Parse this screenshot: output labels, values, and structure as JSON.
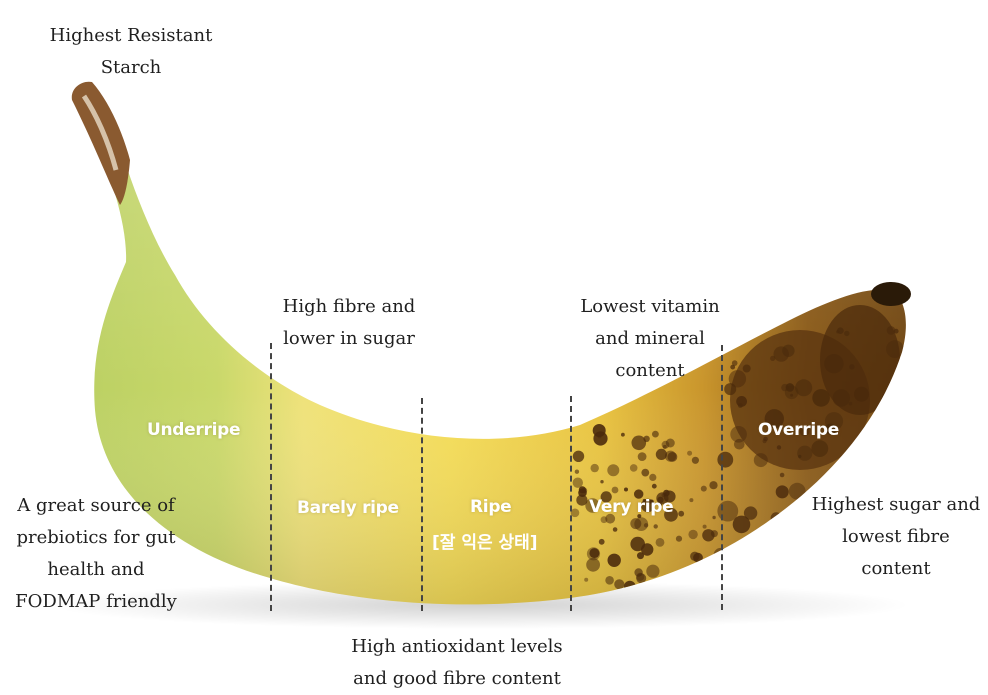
{
  "annotations": {
    "top_left": [
      "Highest Resistant",
      "Starch"
    ],
    "barely_ripe_note": [
      "High fibre and",
      "lower in sugar"
    ],
    "very_ripe_note": [
      "Lowest vitamin",
      "and mineral",
      "content"
    ],
    "underripe_note": [
      "A great source of",
      "prebiotics for gut",
      "health and",
      "FODMAP friendly"
    ],
    "overripe_note": [
      "Highest sugar and",
      "lowest fibre",
      "content"
    ],
    "ripe_note": [
      "High antioxidant levels",
      "and good fibre content"
    ]
  },
  "stages": {
    "underripe": "Underripe",
    "barely_ripe": "Barely ripe",
    "ripe": "Ripe",
    "ripe_korean": "[잘 익은 상태]",
    "very_ripe": "Very ripe",
    "overripe": "Overripe"
  },
  "colors": {
    "underripe": "#b9cf62",
    "barely_ripe": "#f1df6c",
    "ripe": "#f3d64a",
    "very_ripe": "#d7a52c",
    "overripe": "#9a6a1c",
    "spots": "#4a2a0c"
  }
}
